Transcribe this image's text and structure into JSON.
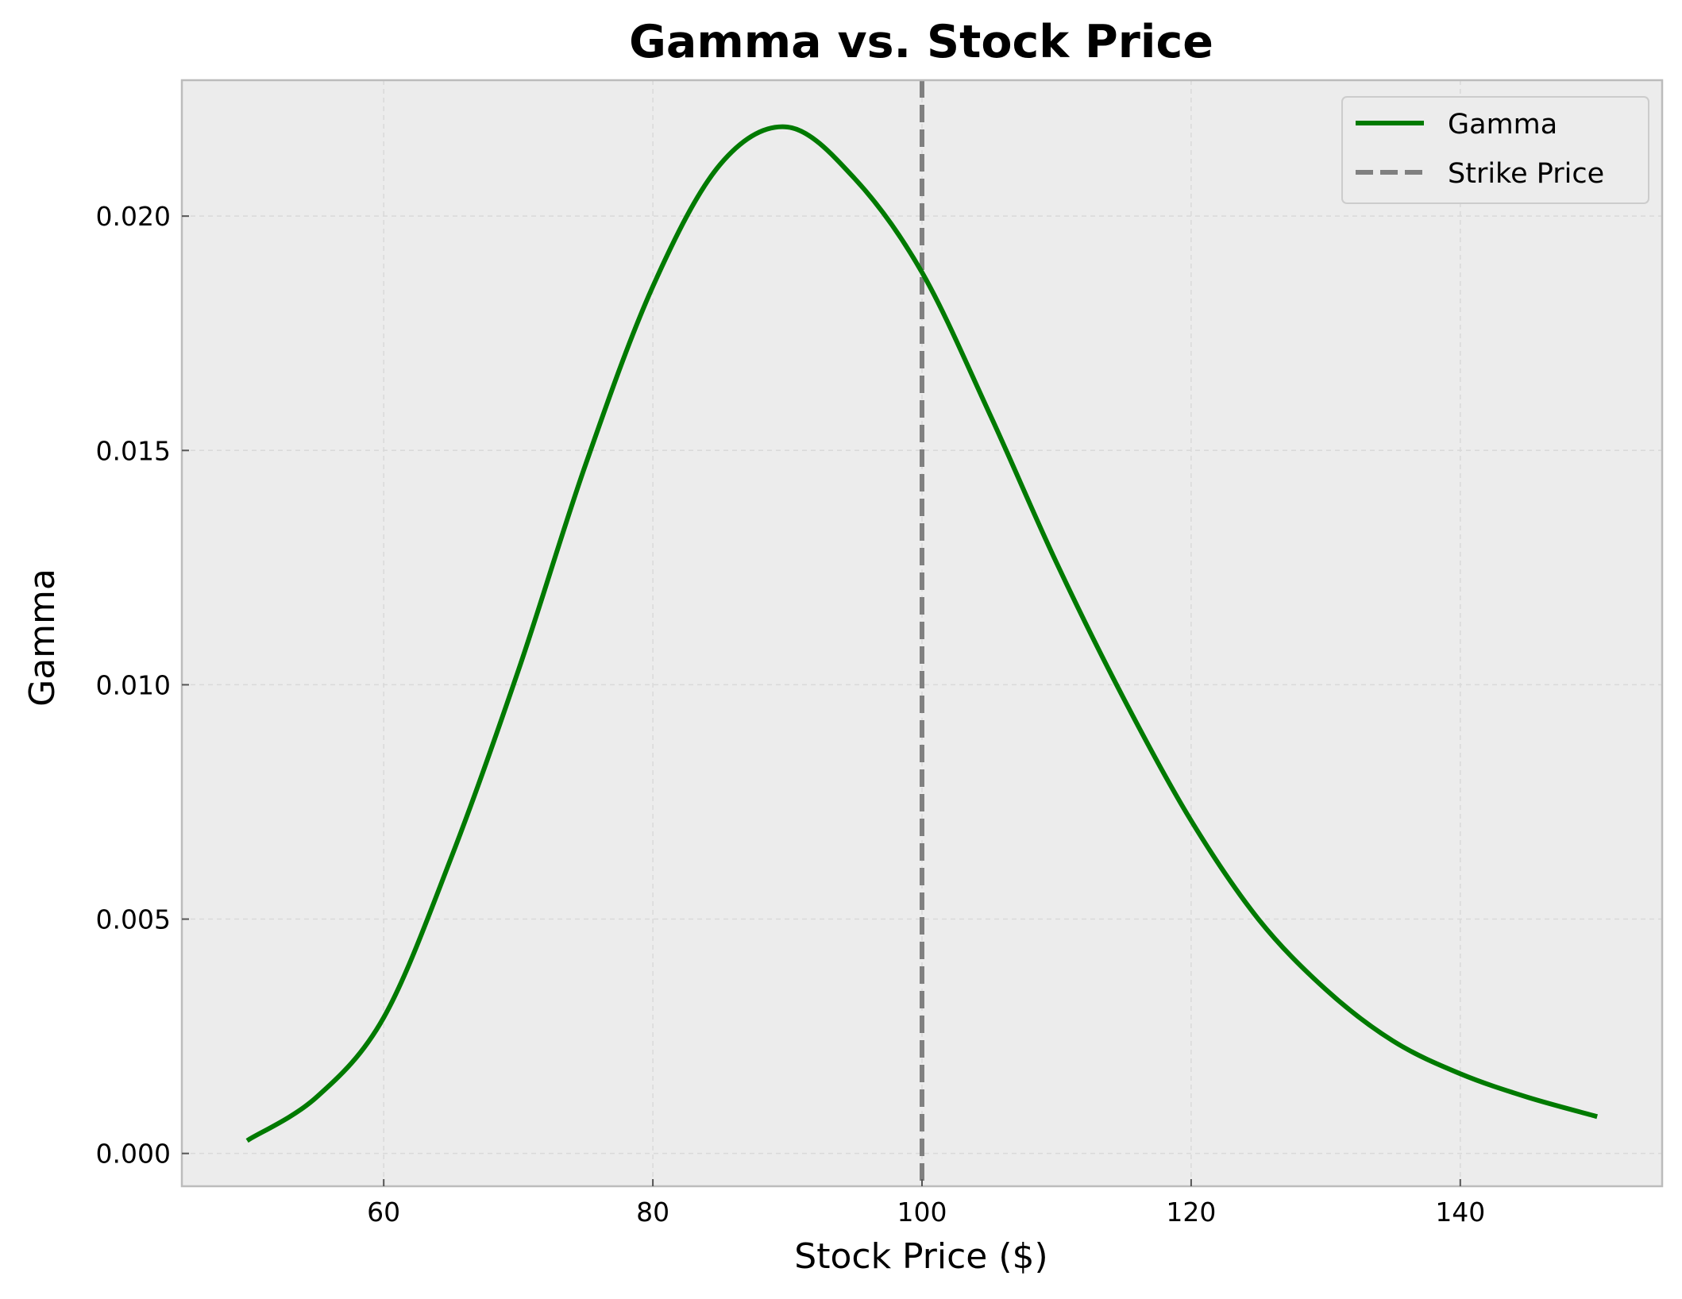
{
  "colors": {
    "background": "#ffffff",
    "plot_background": "#ececec",
    "axes_edge": "#bcbcbc",
    "grid": "#d9d9d9",
    "gamma_line": "#007a00",
    "strike_line": "#808080",
    "legend_face": "#ececec",
    "legend_edge": "#cccccc"
  },
  "chart_data": {
    "type": "line",
    "title": "Gamma vs. Stock Price",
    "xlabel": "Stock Price ($)",
    "ylabel": "Gamma",
    "xlim": [
      45,
      155
    ],
    "ylim": [
      -0.0007,
      0.0229
    ],
    "xticks": [
      60,
      80,
      100,
      120,
      140
    ],
    "xtick_labels": [
      "60",
      "80",
      "100",
      "120",
      "140"
    ],
    "yticks": [
      0.0,
      0.005,
      0.01,
      0.015,
      0.02
    ],
    "ytick_labels": [
      "0.000",
      "0.005",
      "0.010",
      "0.015",
      "0.020"
    ],
    "grid": true,
    "legend_position": "top-right",
    "series": [
      {
        "name": "Gamma",
        "style": "solid",
        "color": "#007a00",
        "x": [
          50,
          55,
          60,
          65,
          70,
          75,
          80,
          85,
          90,
          95,
          100,
          105,
          110,
          115,
          120,
          125,
          130,
          135,
          140,
          145,
          150
        ],
        "y": [
          0.0003,
          0.0012,
          0.0029,
          0.0063,
          0.0103,
          0.0147,
          0.0185,
          0.0211,
          0.0219,
          0.0208,
          0.0188,
          0.0158,
          0.0126,
          0.0097,
          0.0071,
          0.005,
          0.0035,
          0.0024,
          0.0017,
          0.0012,
          0.0008
        ]
      }
    ],
    "reference_lines": [
      {
        "name": "Strike Price",
        "orientation": "vertical",
        "x": 100,
        "style": "dashed",
        "color": "#808080"
      }
    ]
  }
}
